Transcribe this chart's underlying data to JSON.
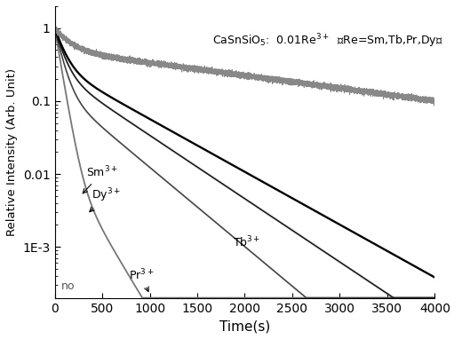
{
  "xlabel": "Time(s)",
  "ylabel": "Relative Intensity (Arb. Unit)",
  "xlim": [
    0,
    4000
  ],
  "ylim": [
    0.0002,
    2.0
  ],
  "background_color": "#ffffff",
  "yticks": [
    0.001,
    0.01,
    0.1,
    1
  ],
  "ytick_labels": [
    "1E-3",
    "0.01",
    "0.1",
    "1"
  ],
  "xticks": [
    0,
    500,
    1000,
    1500,
    2000,
    2500,
    3000,
    3500,
    4000
  ],
  "annotation_text": "CaSnSiO₅:  0.01Re³⁺  （Re=Sm,Tb,Pr,Dy）"
}
